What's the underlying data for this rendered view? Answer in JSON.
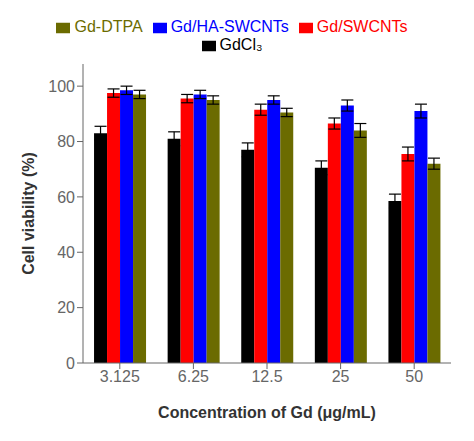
{
  "chart_data": {
    "type": "bar",
    "xlabel": "Concentration of Gd (μg/mL)",
    "ylabel": "Cell viability (%)",
    "categories": [
      "3.125",
      "6.25",
      "12.5",
      "25",
      "50"
    ],
    "series": [
      {
        "name": "GdCl₃",
        "color": "#000000",
        "values": [
          83,
          81,
          77,
          70.5,
          58.5
        ],
        "errors": [
          2.5,
          2.5,
          2.5,
          2.5,
          2.5
        ]
      },
      {
        "name": "Gd/SWCNTs",
        "color": "#ff0000",
        "values": [
          97.5,
          95.5,
          91.5,
          86.5,
          75.5
        ],
        "errors": [
          1.5,
          1.5,
          2.0,
          2.0,
          2.5
        ]
      },
      {
        "name": "Gd/HA-SWCNTs",
        "color": "#0000ff",
        "values": [
          98.5,
          97.0,
          95.0,
          93.0,
          91.0
        ],
        "errors": [
          1.5,
          1.5,
          1.5,
          2.0,
          2.5
        ]
      },
      {
        "name": "Gd-DTPA",
        "color": "#6b6b00",
        "values": [
          97.0,
          95.0,
          90.5,
          84.0,
          72.0
        ],
        "errors": [
          1.5,
          1.5,
          1.5,
          2.5,
          2.0
        ]
      }
    ],
    "ylim": [
      0,
      108
    ],
    "yticks": [
      0,
      20,
      40,
      60,
      80,
      100
    ],
    "grid": false,
    "legend": "top"
  }
}
